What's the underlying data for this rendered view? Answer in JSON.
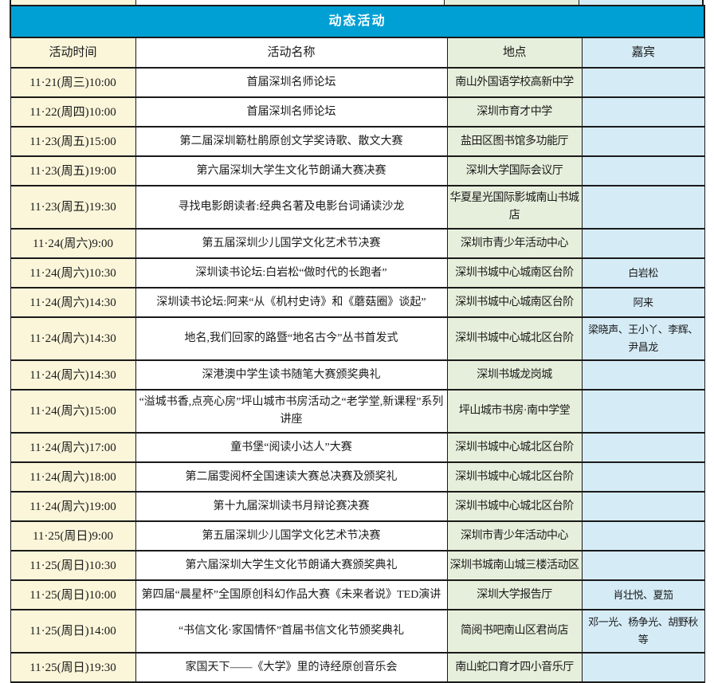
{
  "table": {
    "title": "动态活动",
    "columns": [
      "活动时间",
      "活动名称",
      "地点",
      "嘉宾"
    ],
    "rows": [
      {
        "time": "11·21(周三)10:00",
        "name": "首届深圳名师论坛",
        "venue": "南山外国语学校高新中学",
        "guest": ""
      },
      {
        "time": "11·22(周四)10:00",
        "name": "首届深圳名师论坛",
        "venue": "深圳市育才中学",
        "guest": ""
      },
      {
        "time": "11·23(周五)15:00",
        "name": "第二届深圳簕杜鹃原创文学奖诗歌、散文大赛",
        "venue": "盐田区图书馆多功能厅",
        "guest": ""
      },
      {
        "time": "11·23(周五)19:00",
        "name": "第六届深圳大学生文化节朗诵大赛决赛",
        "venue": "深圳大学国际会议厅",
        "guest": ""
      },
      {
        "time": "11·23(周五)19:30",
        "name": "寻找电影朗读者:经典名著及电影台词诵读沙龙",
        "venue": "华夏星光国际影城南山书城店",
        "guest": ""
      },
      {
        "time": "11·24(周六)9:00",
        "name": "第五届深圳少儿国学文化艺术节决赛",
        "venue": "深圳市青少年活动中心",
        "guest": ""
      },
      {
        "time": "11·24(周六)10:30",
        "name": "深圳读书论坛:白岩松“做时代的长跑者”",
        "venue": "深圳书城中心城南区台阶",
        "guest": "白岩松"
      },
      {
        "time": "11·24(周六)14:30",
        "name": "深圳读书论坛:阿来“从《机村史诗》和《蘑菇圈》谈起”",
        "venue": "深圳书城中心城南区台阶",
        "guest": "阿来"
      },
      {
        "time": "11·24(周六)14:30",
        "name": "地名,我们回家的路暨“地名古今”丛书首发式",
        "venue": "深圳书城中心城北区台阶",
        "guest": "梁晓声、王小丫、李辉、尹昌龙"
      },
      {
        "time": "11·24(周六)14:30",
        "name": "深港澳中学生读书随笔大赛颁奖典礼",
        "venue": "深圳书城龙岗城",
        "guest": ""
      },
      {
        "time": "11·24(周六)15:00",
        "name": "“溢城书香,点亮心房”坪山城市书房活动之“老学堂,新课程”系列讲座",
        "venue": "坪山城市书房·南中学堂",
        "guest": ""
      },
      {
        "time": "11·24(周六)17:00",
        "name": "童书堡“阅读小达人”大赛",
        "venue": "深圳书城中心城北区台阶",
        "guest": ""
      },
      {
        "time": "11·24(周六)18:00",
        "name": "第二届雯阅杯全国速读大赛总决赛及颁奖礼",
        "venue": "深圳书城中心城北区台阶",
        "guest": ""
      },
      {
        "time": "11·24(周六)19:00",
        "name": "第十九届深圳读书月辩论赛决赛",
        "venue": "深圳书城中心城北区台阶",
        "guest": ""
      },
      {
        "time": "11·25(周日)9:00",
        "name": "第五届深圳少儿国学文化艺术节决赛",
        "venue": "深圳市青少年活动中心",
        "guest": ""
      },
      {
        "time": "11·25(周日)10:30",
        "name": "第六届深圳大学生文化节朗诵大赛颁奖典礼",
        "venue": "深圳书城南山城三楼活动区",
        "guest": ""
      },
      {
        "time": "11·25(周日)10:00",
        "name": "第四届“晨星杯”全国原创科幻作品大赛《未来者说》TED演讲",
        "venue": "深圳大学报告厅",
        "guest": "肖壮悦、夏笳"
      },
      {
        "time": "11·25(周日)14:00",
        "name": "“书信文化·家国情怀”首届书信文化节颁奖典礼",
        "venue": "简阅书吧南山区君尚店",
        "guest": "邓一光、杨争光、胡野秋等"
      },
      {
        "time": "11·25(周日)19:30",
        "name": "家国天下——《大学》里的诗经原创音乐会",
        "venue": "南山蛇口育才四小音乐厅",
        "guest": ""
      }
    ]
  },
  "colors": {
    "header_band_bg": "#00A0D4",
    "header_band_text": "#FFFFFF",
    "time_column_bg": "#FBF6DA",
    "name_column_bg": "#FFFFFF",
    "venue_column_bg": "#E6EFDB",
    "guest_column_bg": "#D5ECF7",
    "border": "#1A1A1A",
    "text": "#1A1A1A"
  }
}
